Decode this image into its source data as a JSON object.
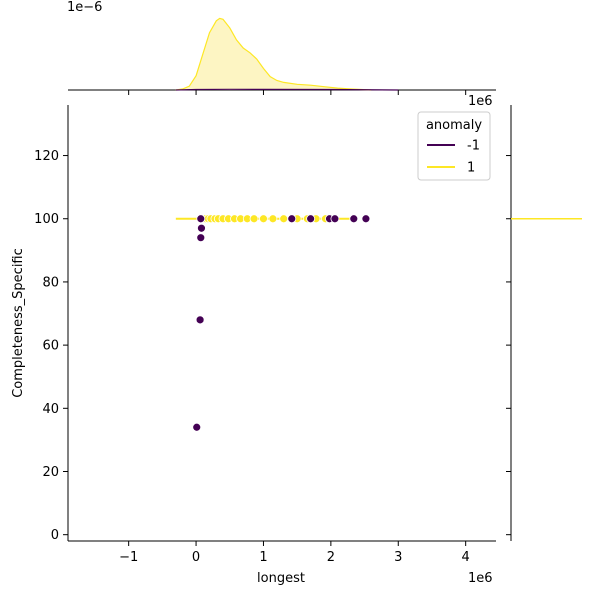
{
  "chart_data": {
    "type": "scatter",
    "xlabel": "longest",
    "ylabel": "Completeness_Specific",
    "x_offset_label": "1e6",
    "top_y_offset_label": "1e−6",
    "right_x_offset_label": "1e6",
    "xlim": [
      -1.9,
      4.45
    ],
    "ylim": [
      -2,
      136
    ],
    "x_ticks": [
      -1,
      0,
      1,
      2,
      3,
      4
    ],
    "x_tick_labels": [
      "−1",
      "0",
      "1",
      "2",
      "3",
      "4"
    ],
    "y_ticks": [
      0,
      20,
      40,
      60,
      80,
      100,
      120
    ],
    "y_tick_labels": [
      "0",
      "20",
      "40",
      "60",
      "80",
      "100",
      "120"
    ],
    "legend": {
      "title": "anomaly",
      "placement": "top-right",
      "entries": [
        {
          "label": "-1",
          "color": "#440154"
        },
        {
          "label": "1",
          "color": "#fde725"
        }
      ]
    },
    "series": [
      {
        "name": "-1",
        "color": "#440154",
        "x": [
          0.01,
          0.06,
          0.07,
          0.08,
          0.07,
          1.42,
          1.7,
          1.98,
          2.06,
          2.34,
          2.52
        ],
        "y": [
          34,
          68,
          94,
          97,
          100,
          100,
          100,
          100,
          100,
          100,
          100
        ]
      },
      {
        "name": "1",
        "color": "#fde725",
        "x": [
          0.1,
          0.14,
          0.18,
          0.22,
          0.28,
          0.33,
          0.4,
          0.48,
          0.57,
          0.66,
          0.76,
          0.86,
          1.0,
          1.14,
          1.3,
          1.5,
          1.65,
          1.78,
          1.92
        ],
        "y": [
          100,
          100,
          100,
          100,
          100,
          100,
          100,
          100,
          100,
          100,
          100,
          100,
          100,
          100,
          100,
          100,
          100,
          100,
          100
        ]
      }
    ],
    "top_kde": {
      "series": [
        {
          "name": "1",
          "color": "#fde725",
          "fill_color": "#fdf5c3",
          "x": [
            -0.3,
            -0.2,
            -0.1,
            0.0,
            0.1,
            0.2,
            0.3,
            0.35,
            0.4,
            0.5,
            0.6,
            0.7,
            0.8,
            0.9,
            1.0,
            1.1,
            1.2,
            1.3,
            1.5,
            1.7,
            1.9,
            2.1,
            2.3,
            2.6
          ],
          "y": [
            0.0,
            0.02,
            0.08,
            0.3,
            0.75,
            1.2,
            1.45,
            1.5,
            1.48,
            1.3,
            1.05,
            0.88,
            0.78,
            0.65,
            0.45,
            0.28,
            0.2,
            0.16,
            0.12,
            0.1,
            0.07,
            0.04,
            0.02,
            0.0
          ]
        },
        {
          "name": "-1",
          "color": "#440154",
          "x": [
            -0.3,
            0.0,
            0.5,
            1.0,
            2.0,
            3.0
          ],
          "y": [
            0.0,
            0.01,
            0.015,
            0.012,
            0.01,
            0.0
          ]
        }
      ],
      "ylim": [
        0,
        1.55
      ]
    },
    "right_kde": {
      "series": [
        {
          "name": "1",
          "color": "#fde725",
          "y": 100
        }
      ]
    }
  }
}
